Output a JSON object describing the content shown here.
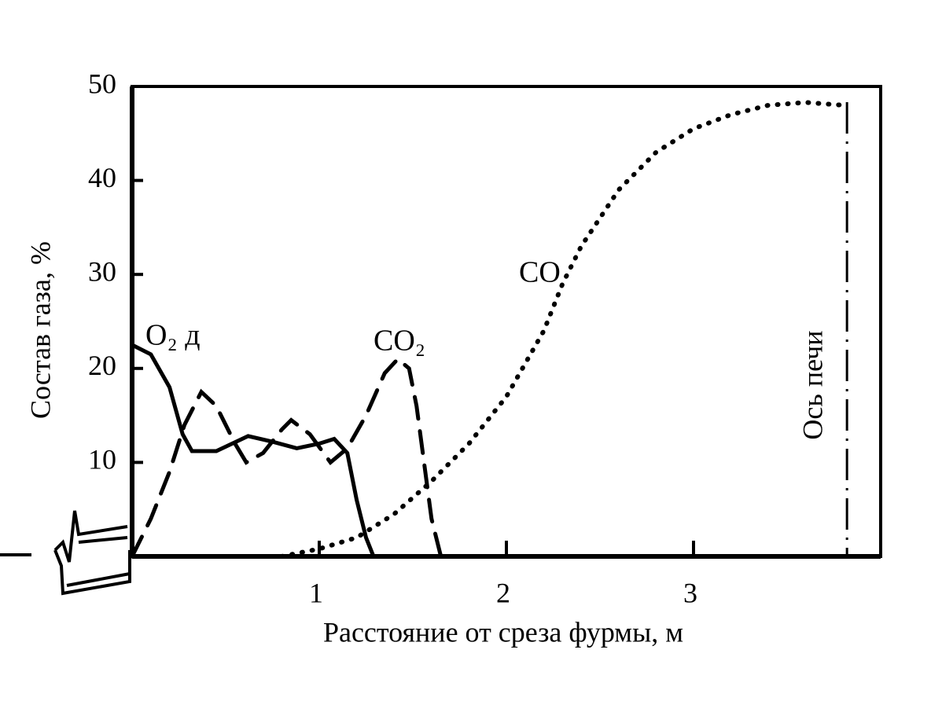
{
  "chart_data": {
    "type": "line",
    "ylabel": "Состав газа, %",
    "xlabel": "Расстояние от среза фурмы, м",
    "xlim": [
      0,
      4
    ],
    "xticks": [
      1,
      2,
      3
    ],
    "ylim": [
      0,
      50
    ],
    "yticks": [
      10,
      20,
      30,
      40,
      50
    ],
    "series": [
      {
        "name": "O₂ д",
        "color": "#000000",
        "style": "solid",
        "x": [
          0,
          0.1,
          0.2,
          0.27,
          0.32,
          0.45,
          0.62,
          0.75,
          0.88,
          1.0,
          1.08,
          1.15,
          1.2,
          1.25,
          1.29
        ],
        "values": [
          22.5,
          21.5,
          18,
          13,
          11.2,
          11.2,
          12.8,
          12.2,
          11.5,
          12,
          12.5,
          11,
          6,
          2,
          0
        ]
      },
      {
        "name": "CO₂",
        "color": "#000000",
        "style": "dashed",
        "x": [
          0,
          0.1,
          0.2,
          0.28,
          0.37,
          0.45,
          0.55,
          0.61,
          0.7,
          0.8,
          0.85,
          0.95,
          1.06,
          1.15,
          1.25,
          1.35,
          1.42,
          1.48,
          1.52,
          1.56,
          1.6,
          1.65
        ],
        "values": [
          0,
          4,
          9,
          14,
          17.5,
          16,
          12,
          10,
          11,
          13.5,
          14.5,
          13,
          10,
          11.5,
          15,
          19.5,
          21,
          20,
          16,
          10,
          4,
          0
        ]
      },
      {
        "name": "CO",
        "color": "#000000",
        "style": "dotted",
        "x": [
          0.8,
          1.0,
          1.2,
          1.4,
          1.6,
          1.8,
          2.0,
          2.2,
          2.3,
          2.4,
          2.6,
          2.8,
          3.0,
          3.2,
          3.4,
          3.6,
          3.8
        ],
        "values": [
          0,
          0.8,
          2,
          4.5,
          8,
          12,
          17,
          24,
          29,
          33,
          39,
          43,
          45.5,
          47,
          48,
          48.3,
          48
        ]
      }
    ],
    "annotations": [
      {
        "text": "Ось печи",
        "x": 3.82
      }
    ]
  }
}
